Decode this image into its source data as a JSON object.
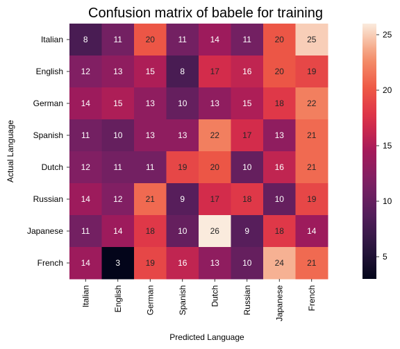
{
  "chart_data": {
    "type": "heatmap",
    "title": "Confusion matrix of babele for training",
    "xlabel": "Predicted Language",
    "ylabel": "Actual Language",
    "row_labels": [
      "Italian",
      "English",
      "German",
      "Spanish",
      "Dutch",
      "Russian",
      "Japanese",
      "French"
    ],
    "col_labels": [
      "Italian",
      "English",
      "German",
      "Spanish",
      "Dutch",
      "Russian",
      "Japanese",
      "French"
    ],
    "values": [
      [
        8,
        11,
        20,
        11,
        14,
        11,
        20,
        25
      ],
      [
        12,
        13,
        15,
        8,
        17,
        16,
        20,
        19
      ],
      [
        14,
        15,
        13,
        10,
        13,
        15,
        18,
        22
      ],
      [
        11,
        10,
        13,
        13,
        22,
        17,
        13,
        21
      ],
      [
        12,
        11,
        11,
        19,
        20,
        10,
        16,
        21
      ],
      [
        14,
        12,
        21,
        9,
        17,
        18,
        10,
        19
      ],
      [
        11,
        14,
        18,
        10,
        26,
        9,
        18,
        14
      ],
      [
        14,
        3,
        19,
        16,
        13,
        10,
        24,
        21
      ]
    ],
    "vmin": 3,
    "vmax": 26,
    "colorbar_ticks": [
      5,
      10,
      15,
      20,
      25
    ],
    "colormap": "rocket"
  }
}
